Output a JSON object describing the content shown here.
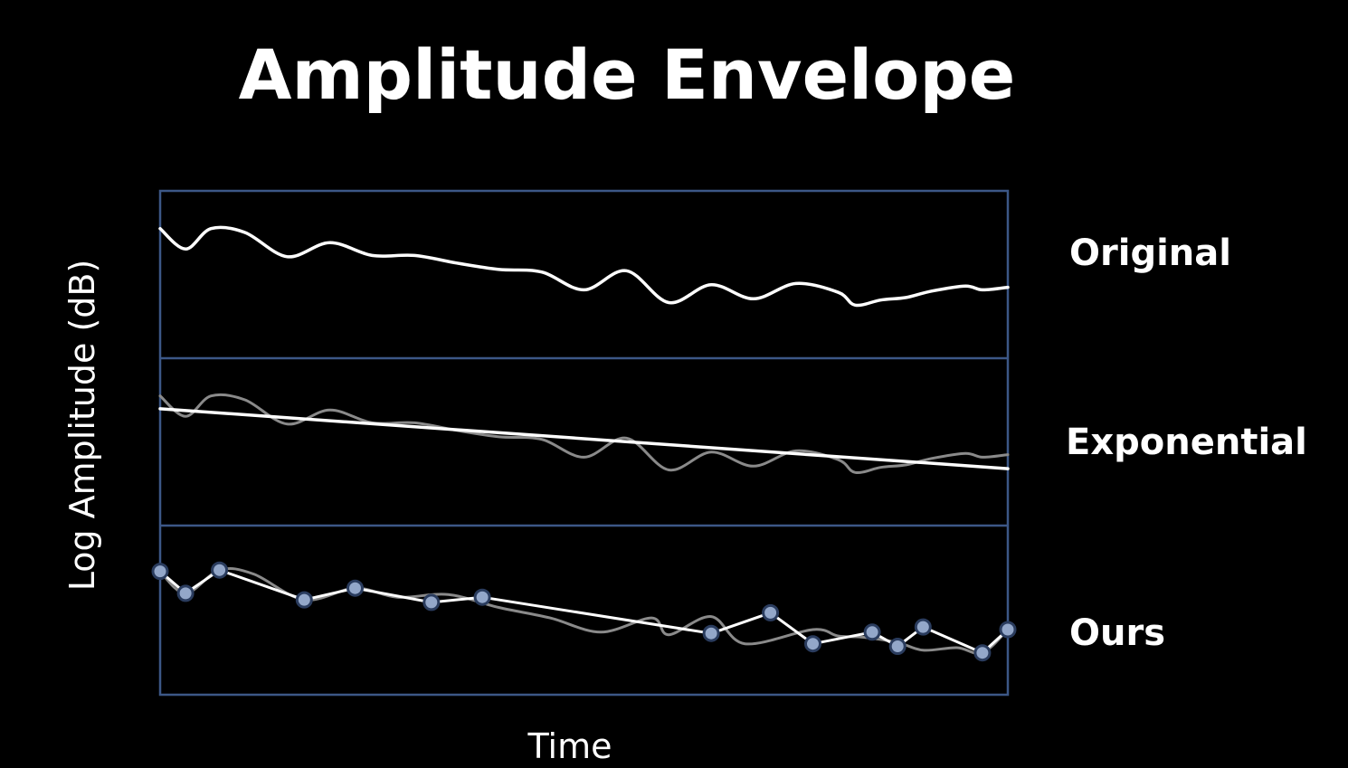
{
  "title": "Amplitude Envelope",
  "colors": {
    "background": "#000000",
    "frame": "#3c5786",
    "curve": "#ffffff",
    "faded_curve": "#8a8a8a",
    "marker_fill": "#93a7c9",
    "marker_stroke": "#2a3c5e"
  },
  "chart_data": {
    "type": "line",
    "title": "Amplitude Envelope",
    "xlabel": "Time",
    "ylabel": "Log Amplitude (dB)",
    "grid": false,
    "xlim": [
      0,
      100
    ],
    "ylim": [
      0,
      100
    ],
    "panels": [
      {
        "label": "Original",
        "series": [
          {
            "style": "solid",
            "x": [
              0,
              3,
              6,
              10,
              15,
              20,
              25,
              30,
              35,
              40,
              45,
              50,
              55,
              60,
              65,
              70,
              75,
              80,
              82,
              85,
              88,
              91,
              95,
              97,
              100
            ],
            "y": [
              86,
              70,
              86,
              83,
              64,
              75,
              65,
              65,
              59,
              54,
              52,
              38,
              53,
              28,
              42,
              31,
              43,
              36,
              26,
              30,
              32,
              37,
              41,
              38,
              40
            ]
          }
        ]
      },
      {
        "label": "Exponential",
        "series": [
          {
            "style": "faded",
            "x": [
              0,
              3,
              6,
              10,
              15,
              20,
              25,
              30,
              35,
              40,
              45,
              50,
              55,
              60,
              65,
              70,
              75,
              80,
              82,
              85,
              88,
              91,
              95,
              97,
              100
            ],
            "y": [
              86,
              70,
              86,
              83,
              64,
              75,
              65,
              65,
              59,
              54,
              52,
              38,
              53,
              28,
              42,
              31,
              43,
              36,
              26,
              30,
              32,
              37,
              41,
              38,
              40
            ]
          },
          {
            "style": "solid",
            "x": [
              0,
              100
            ],
            "y": [
              76,
              29
            ]
          }
        ]
      },
      {
        "label": "Ours",
        "series": [
          {
            "style": "faded",
            "x": [
              0,
              3,
              7,
              11,
              17,
              23,
              28,
              34,
              40,
              46,
              52,
              58,
              60,
              65,
              69,
              77,
              80,
              83,
              87,
              90,
              94,
              97,
              100
            ],
            "y": [
              80,
              63,
              81,
              78,
              58,
              67,
              60,
              62,
              52,
              44,
              33,
              44,
              31,
              45,
              24,
              35,
              30,
              29,
              25,
              19,
              21,
              17,
              35
            ]
          },
          {
            "style": "markers",
            "x": [
              0,
              3,
              7,
              17,
              23,
              32,
              38,
              65,
              72,
              77,
              84,
              87,
              90,
              97,
              100
            ],
            "y": [
              80,
              63,
              81,
              58,
              67,
              56,
              60,
              32,
              48,
              24,
              33,
              22,
              37,
              17,
              35
            ]
          }
        ]
      }
    ]
  }
}
